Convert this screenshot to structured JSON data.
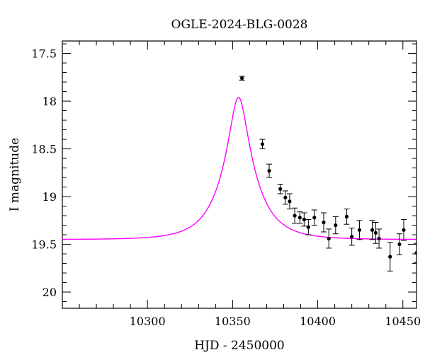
{
  "chart_data": {
    "type": "scatter",
    "title": "OGLE-2024-BLG-0028",
    "xlabel": "HJD - 2450000",
    "ylabel": "I magnitude",
    "xlim": [
      10250,
      10458
    ],
    "ylim": [
      20.17,
      17.37
    ],
    "y_inverted": true,
    "x_major_ticks": [
      10300,
      10350,
      10400,
      10450
    ],
    "x_tick_labels": [
      "10300",
      "10350",
      "10400",
      "10450"
    ],
    "x_minor_step": 10,
    "y_major_ticks": [
      17.5,
      18,
      18.5,
      19,
      19.5,
      20
    ],
    "y_tick_labels": [
      "17.5",
      "18",
      "18.5",
      "19",
      "19.5",
      "20"
    ],
    "y_minor_step": 0.1,
    "grid": false,
    "colors": {
      "model": "#ff00ff",
      "data": "#000000"
    },
    "model": {
      "kind": "microlensing-fit",
      "t0": 10353.5,
      "u0": 0.26,
      "tE": 19,
      "I_base": 19.45
    },
    "series": [
      {
        "points": [
          {
            "x": 10355.5,
            "y": 17.76,
            "err": 0.02
          },
          {
            "x": 10367.5,
            "y": 18.45,
            "err": 0.05
          },
          {
            "x": 10371.5,
            "y": 18.73,
            "err": 0.07
          },
          {
            "x": 10378.0,
            "y": 18.92,
            "err": 0.05
          },
          {
            "x": 10381.0,
            "y": 19.01,
            "err": 0.07
          },
          {
            "x": 10383.5,
            "y": 19.05,
            "err": 0.08
          },
          {
            "x": 10386.5,
            "y": 19.2,
            "err": 0.08
          },
          {
            "x": 10389.5,
            "y": 19.22,
            "err": 0.06
          },
          {
            "x": 10392.0,
            "y": 19.24,
            "err": 0.07
          },
          {
            "x": 10394.5,
            "y": 19.32,
            "err": 0.08
          },
          {
            "x": 10398.0,
            "y": 19.22,
            "err": 0.08
          },
          {
            "x": 10403.5,
            "y": 19.27,
            "err": 0.1
          },
          {
            "x": 10406.5,
            "y": 19.44,
            "err": 0.1
          },
          {
            "x": 10410.5,
            "y": 19.3,
            "err": 0.09
          },
          {
            "x": 10417.0,
            "y": 19.21,
            "err": 0.08
          },
          {
            "x": 10420.0,
            "y": 19.42,
            "err": 0.09
          },
          {
            "x": 10424.5,
            "y": 19.35,
            "err": 0.1
          },
          {
            "x": 10432.0,
            "y": 19.35,
            "err": 0.1
          },
          {
            "x": 10434.0,
            "y": 19.38,
            "err": 0.11
          },
          {
            "x": 10436.0,
            "y": 19.44,
            "err": 0.1
          },
          {
            "x": 10442.5,
            "y": 19.63,
            "err": 0.15
          },
          {
            "x": 10448.0,
            "y": 19.5,
            "err": 0.11
          },
          {
            "x": 10450.5,
            "y": 19.35,
            "err": 0.11
          },
          {
            "x": 10458.0,
            "y": 19.59,
            "err": 0.1
          }
        ]
      }
    ]
  }
}
